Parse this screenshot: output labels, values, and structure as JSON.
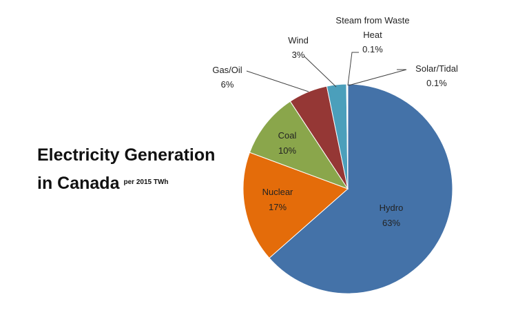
{
  "title": {
    "line1": "Electricity Generation",
    "line2": "in Canada",
    "subtitle": "per 2015 TWh"
  },
  "chart_data": {
    "type": "pie",
    "title": "Electricity Generation in Canada",
    "subtitle": "per 2015 TWh",
    "slices": [
      {
        "name": "Hydro",
        "value": 63,
        "label": "63%",
        "color": "#4472a8"
      },
      {
        "name": "Nuclear",
        "value": 17,
        "label": "17%",
        "color": "#e46c0a"
      },
      {
        "name": "Coal",
        "value": 10,
        "label": "10%",
        "color": "#8aa64b"
      },
      {
        "name": "Gas/Oil",
        "value": 6,
        "label": "6%",
        "color": "#953735"
      },
      {
        "name": "Wind",
        "value": 3,
        "label": "3%",
        "color": "#4b9fbb"
      },
      {
        "name": "Steam from Waste Heat",
        "value": 0.1,
        "label": "0.1%",
        "color": "#7f6084"
      },
      {
        "name": "Solar/Tidal",
        "value": 0.1,
        "label": "0.1%",
        "color": "#f79646"
      }
    ]
  }
}
